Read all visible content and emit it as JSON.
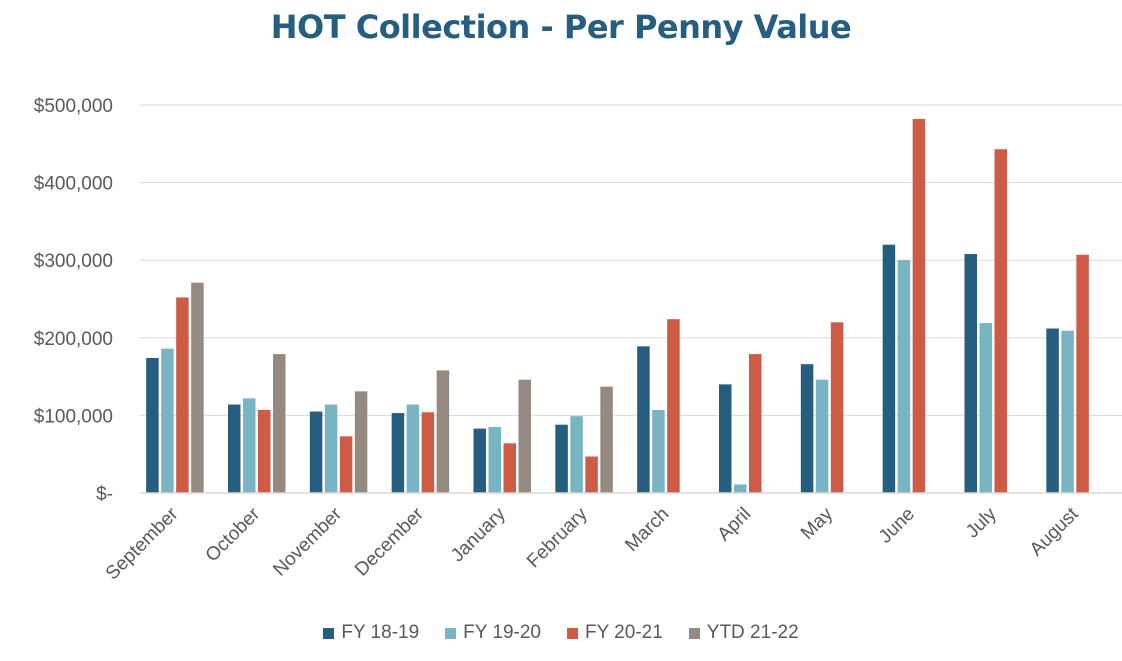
{
  "chart_data": {
    "type": "bar",
    "title": "HOT Collection - Per Penny Value",
    "xlabel": "",
    "ylabel": "",
    "ylim": [
      0,
      500000
    ],
    "y_ticks": [
      {
        "value": 0,
        "label": "$-"
      },
      {
        "value": 100000,
        "label": "$100,000"
      },
      {
        "value": 200000,
        "label": "$200,000"
      },
      {
        "value": 300000,
        "label": "$300,000"
      },
      {
        "value": 400000,
        "label": "$400,000"
      },
      {
        "value": 500000,
        "label": "$500,000"
      }
    ],
    "grid": true,
    "legend_position": "bottom",
    "categories": [
      "September",
      "October",
      "November",
      "December",
      "January",
      "February",
      "March",
      "April",
      "May",
      "June",
      "July",
      "August"
    ],
    "series": [
      {
        "name": "FY 18-19",
        "color": "#255e7e",
        "values": [
          174000,
          114000,
          105000,
          103000,
          83000,
          88000,
          189000,
          140000,
          166000,
          320000,
          308000,
          212000
        ]
      },
      {
        "name": "FY 19-20",
        "color": "#78b4c2",
        "values": [
          186000,
          122000,
          114000,
          114000,
          85000,
          99000,
          107000,
          11000,
          146000,
          300000,
          219000,
          209000
        ]
      },
      {
        "name": "FY 20-21",
        "color": "#cd5b45",
        "values": [
          252000,
          107000,
          73000,
          104000,
          64000,
          47000,
          224000,
          179000,
          220000,
          482000,
          443000,
          307000
        ]
      },
      {
        "name": "YTD 21-22",
        "color": "#948a80",
        "values": [
          271000,
          179000,
          131000,
          158000,
          146000,
          137000,
          null,
          null,
          null,
          null,
          null,
          null
        ]
      }
    ]
  },
  "title_color": "#255e7e"
}
